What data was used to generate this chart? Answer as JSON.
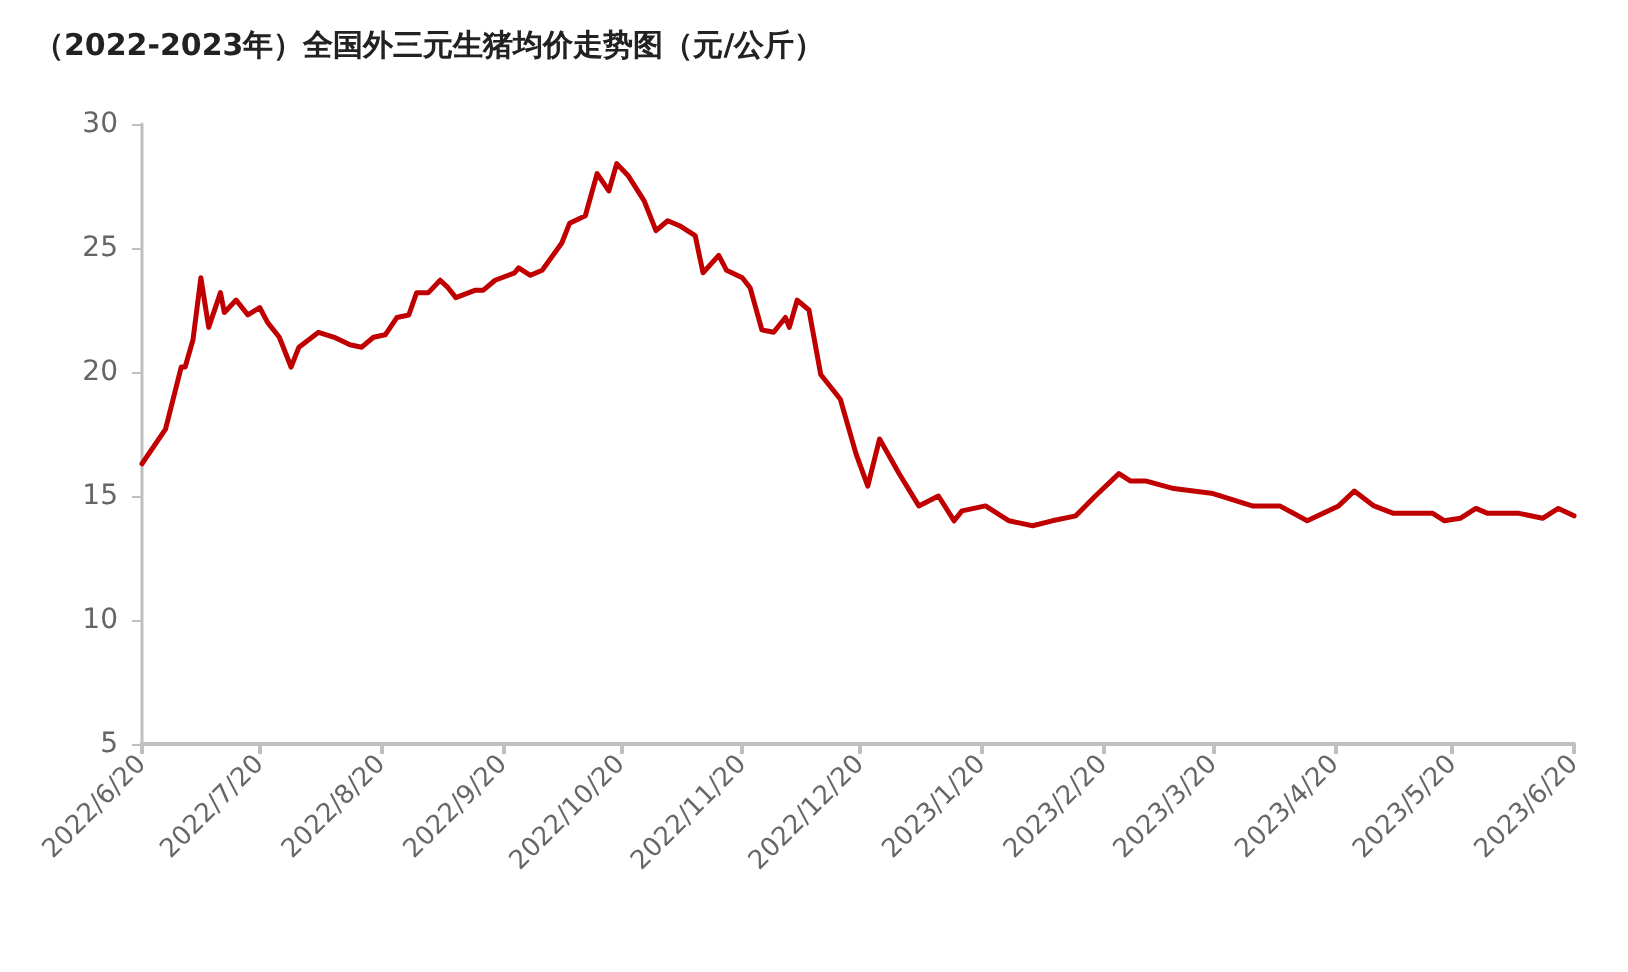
{
  "chart_data": {
    "type": "line",
    "title": "（2022-2023年）全国外三元生猪均价走势图（元/公斤）",
    "x": [
      "2022-06-20",
      "2022-06-26",
      "2022-06-30",
      "2022-07-01",
      "2022-07-03",
      "2022-07-05",
      "2022-07-07",
      "2022-07-10",
      "2022-07-11",
      "2022-07-14",
      "2022-07-17",
      "2022-07-20",
      "2022-07-22",
      "2022-07-25",
      "2022-07-28",
      "2022-07-30",
      "2022-08-04",
      "2022-08-08",
      "2022-08-12",
      "2022-08-15",
      "2022-08-18",
      "2022-08-21",
      "2022-08-24",
      "2022-08-27",
      "2022-08-29",
      "2022-09-01",
      "2022-09-04",
      "2022-09-06",
      "2022-09-08",
      "2022-09-13",
      "2022-09-15",
      "2022-09-18",
      "2022-09-23",
      "2022-09-24",
      "2022-09-27",
      "2022-09-30",
      "2022-10-05",
      "2022-10-07",
      "2022-10-11",
      "2022-10-14",
      "2022-10-17",
      "2022-10-19",
      "2022-10-22",
      "2022-10-26",
      "2022-10-29",
      "2022-11-01",
      "2022-11-04",
      "2022-11-08",
      "2022-11-10",
      "2022-11-14",
      "2022-11-16",
      "2022-11-20",
      "2022-11-22",
      "2022-11-25",
      "2022-11-28",
      "2022-12-01",
      "2022-12-02",
      "2022-12-04",
      "2022-12-07",
      "2022-12-10",
      "2022-12-15",
      "2022-12-19",
      "2022-12-22",
      "2022-12-25",
      "2022-12-30",
      "2023-01-04",
      "2023-01-09",
      "2023-01-13",
      "2023-01-15",
      "2023-01-21",
      "2023-01-27",
      "2023-02-02",
      "2023-02-07",
      "2023-02-13",
      "2023-02-18",
      "2023-02-22",
      "2023-02-24",
      "2023-02-27",
      "2023-03-03",
      "2023-03-10",
      "2023-03-20",
      "2023-03-30",
      "2023-04-06",
      "2023-04-13",
      "2023-04-21",
      "2023-04-25",
      "2023-04-30",
      "2023-05-05",
      "2023-05-15",
      "2023-05-18",
      "2023-05-22",
      "2023-05-26",
      "2023-05-29",
      "2023-06-03",
      "2023-06-06",
      "2023-06-12",
      "2023-06-16",
      "2023-06-20"
    ],
    "series": [
      {
        "color": "#c00000",
        "values": [
          16.3,
          17.7,
          20.2,
          20.2,
          21.3,
          23.8,
          21.8,
          23.2,
          22.4,
          22.9,
          22.3,
          22.6,
          22.0,
          21.4,
          20.2,
          21.0,
          21.6,
          21.4,
          21.1,
          21.0,
          21.4,
          21.5,
          22.2,
          22.3,
          23.2,
          23.2,
          23.7,
          23.4,
          23.0,
          23.3,
          23.3,
          23.7,
          24.0,
          24.2,
          23.9,
          24.1,
          25.2,
          26.0,
          26.3,
          28.0,
          27.3,
          28.4,
          27.9,
          26.9,
          25.7,
          26.1,
          25.9,
          25.5,
          24.0,
          24.7,
          24.1,
          23.8,
          23.4,
          21.7,
          21.6,
          22.2,
          21.8,
          22.9,
          22.5,
          19.9,
          18.9,
          16.7,
          15.4,
          17.3,
          15.9,
          14.6,
          15.0,
          14.0,
          14.4,
          14.6,
          14.0,
          13.8,
          14.0,
          14.2,
          15.0,
          15.6,
          15.9,
          15.6,
          15.6,
          15.3,
          15.1,
          14.6,
          14.6,
          14.0,
          14.6,
          15.2,
          14.6,
          14.3,
          14.3,
          14.0,
          14.1,
          14.5,
          14.3,
          14.3,
          14.3,
          14.1,
          14.5,
          14.2
        ]
      }
    ],
    "xlim": [
      "2022-06-20",
      "2023-06-20"
    ],
    "xticks": [
      {
        "value": "2022-06-20",
        "label": "2022/6/20"
      },
      {
        "value": "2022-07-20",
        "label": "2022/7/20"
      },
      {
        "value": "2022-08-20",
        "label": "2022/8/20"
      },
      {
        "value": "2022-09-20",
        "label": "2022/9/20"
      },
      {
        "value": "2022-10-20",
        "label": "2022/10/20"
      },
      {
        "value": "2022-11-20",
        "label": "2022/11/20"
      },
      {
        "value": "2022-12-20",
        "label": "2022/12/20"
      },
      {
        "value": "2023-01-20",
        "label": "2023/1/20"
      },
      {
        "value": "2023-02-20",
        "label": "2023/2/20"
      },
      {
        "value": "2023-03-20",
        "label": "2023/3/20"
      },
      {
        "value": "2023-04-20",
        "label": "2023/4/20"
      },
      {
        "value": "2023-05-20",
        "label": "2023/5/20"
      },
      {
        "value": "2023-06-20",
        "label": "2023/6/20"
      }
    ],
    "ylim": [
      5,
      30
    ],
    "yticks": [
      5,
      10,
      15,
      20,
      25,
      30
    ],
    "grid": false,
    "marker": "none",
    "line_style": "solid"
  }
}
